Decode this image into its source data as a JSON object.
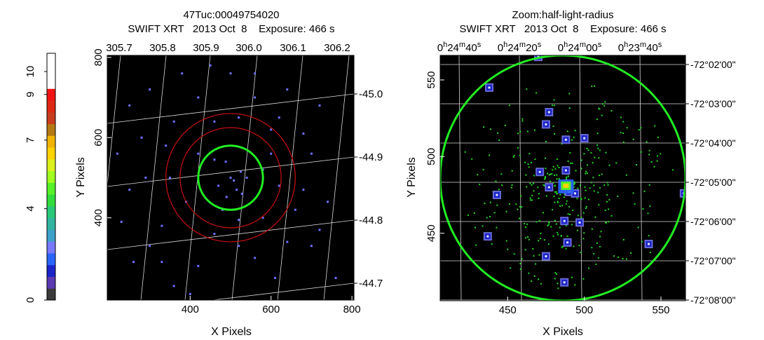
{
  "colorbar": {
    "ticks": [
      0,
      4,
      7,
      9,
      10
    ],
    "range": [
      0,
      10.8
    ],
    "colors": [
      "#3a3a3a",
      "#5a3ab0",
      "#1a24c8",
      "#2a64ff",
      "#7878ff",
      "#3ca0c8",
      "#32b4a0",
      "#28c878",
      "#32dc3c",
      "#58f028",
      "#a0ff1e",
      "#dcf01e",
      "#ffd200",
      "#f0b400",
      "#b47814",
      "#c83c1e",
      "#dc2814",
      "#f01414",
      "#ffffff",
      "#ffffff",
      "#ffffff"
    ]
  },
  "chart_data": [
    {
      "type": "scatter",
      "title": "47Tuc:00049754020",
      "subtitle": "SWIFT XRT   2013 Oct  8    Exposure: 466 s",
      "xlabel": "X Pixels",
      "ylabel": "Y Pixels",
      "xlim": [
        195,
        805
      ],
      "ylim": [
        195,
        805
      ],
      "xticks": [
        400,
        600,
        800
      ],
      "yticks": [
        400,
        600,
        800
      ],
      "top_ticks": [
        "305.7",
        "305.8",
        "305.9",
        "306.0",
        "306.1",
        "306.2"
      ],
      "right_ticks": [
        "-45.0",
        "-44.9",
        "-44.8",
        "-44.7"
      ],
      "grid_color": "#d8d8d8",
      "background": "#000000",
      "regions": [
        {
          "cx": 500,
          "cy": 500,
          "r": 80,
          "color": "#22ee22"
        },
        {
          "cx": 500,
          "cy": 500,
          "r": 125,
          "color": "#cc1010"
        },
        {
          "cx": 500,
          "cy": 500,
          "r": 160,
          "color": "#cc1010"
        }
      ],
      "events": [
        [
          500,
          500
        ],
        [
          508,
          493
        ],
        [
          470,
          480
        ],
        [
          528,
          460
        ],
        [
          520,
          395
        ],
        [
          488,
          540
        ],
        [
          460,
          545
        ],
        [
          525,
          515
        ],
        [
          515,
          470
        ],
        [
          490,
          452
        ],
        [
          540,
          500
        ],
        [
          480,
          420
        ],
        [
          420,
          560
        ],
        [
          580,
          520
        ],
        [
          620,
          480
        ],
        [
          600,
          560
        ],
        [
          350,
          500
        ],
        [
          360,
          640
        ],
        [
          680,
          610
        ],
        [
          700,
          560
        ],
        [
          660,
          420
        ],
        [
          390,
          440
        ],
        [
          330,
          380
        ],
        [
          300,
          330
        ],
        [
          260,
          290
        ],
        [
          360,
          230
        ],
        [
          420,
          280
        ],
        [
          560,
          300
        ],
        [
          640,
          340
        ],
        [
          700,
          330
        ],
        [
          720,
          370
        ],
        [
          760,
          250
        ],
        [
          610,
          250
        ],
        [
          620,
          650
        ],
        [
          560,
          700
        ],
        [
          420,
          700
        ],
        [
          300,
          720
        ],
        [
          250,
          680
        ],
        [
          500,
          760
        ],
        [
          450,
          780
        ],
        [
          380,
          760
        ],
        [
          640,
          720
        ],
        [
          720,
          680
        ],
        [
          560,
          760
        ],
        [
          460,
          360
        ],
        [
          580,
          400
        ],
        [
          680,
          470
        ],
        [
          250,
          470
        ],
        [
          220,
          560
        ],
        [
          280,
          600
        ],
        [
          460,
          640
        ],
        [
          520,
          650
        ],
        [
          600,
          620
        ],
        [
          340,
          580
        ],
        [
          330,
          290
        ],
        [
          520,
          330
        ],
        [
          400,
          210
        ],
        [
          740,
          440
        ],
        [
          230,
          390
        ],
        [
          290,
          500
        ]
      ]
    },
    {
      "type": "scatter",
      "title": "Zoom:half-light-radius",
      "subtitle": "SWIFT XRT   2013 Oct  8    Exposure: 466 s",
      "xlabel": "X Pixels",
      "ylabel": "Y Pixels",
      "xlim": [
        406,
        566
      ],
      "ylim": [
        406,
        566
      ],
      "xticks": [
        450,
        500,
        550
      ],
      "yticks": [
        450,
        500,
        550
      ],
      "top_ticks": [
        "0h24m40s",
        "0h24m20s",
        "0h24m00s",
        "0h23m40s"
      ],
      "right_ticks": [
        "-72°02'00\"",
        "-72°03'00\"",
        "-72°04'00\"",
        "-72°05'00\"",
        "-72°06'00\"",
        "-72°07'00\"",
        "-72°08'00\""
      ],
      "grid_color": "#d8d8d8",
      "background": "#000000",
      "regions": [
        {
          "cx": 486,
          "cy": 486,
          "r": 80,
          "color": "#22ee22"
        }
      ],
      "bright_sources": [
        [
          438,
          545
        ],
        [
          477,
          529
        ],
        [
          475,
          521
        ],
        [
          488,
          511
        ],
        [
          500,
          512
        ],
        [
          471,
          490
        ],
        [
          488,
          491
        ],
        [
          477,
          480
        ],
        [
          489,
          481
        ],
        [
          490,
          477
        ],
        [
          494,
          476
        ],
        [
          443,
          475
        ],
        [
          487,
          458
        ],
        [
          497,
          457
        ],
        [
          437,
          448
        ],
        [
          489,
          444
        ],
        [
          475,
          435
        ],
        [
          542,
          443
        ],
        [
          487,
          418
        ],
        [
          565,
          476
        ],
        [
          470,
          565
        ]
      ],
      "core": {
        "x": 488,
        "y": 481
      }
    }
  ]
}
